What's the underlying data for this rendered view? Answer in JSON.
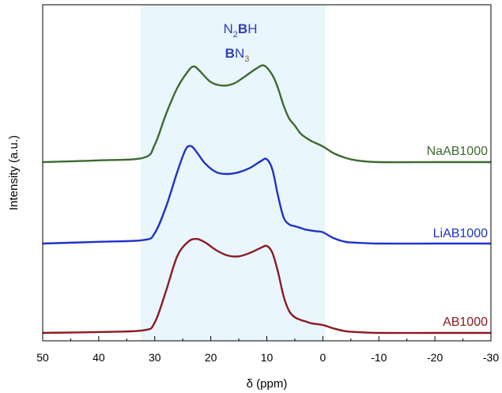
{
  "chart_data": {
    "type": "line",
    "xlabel": "δ (ppm)",
    "ylabel": "Intensity (a.u.)",
    "xlim": [
      50,
      -30
    ],
    "xticks": [
      50,
      40,
      30,
      20,
      10,
      0,
      -10,
      -20,
      -30
    ],
    "xtick_labels": [
      "50",
      "40",
      "30",
      "20",
      "10",
      "0",
      "-10",
      "-20",
      "-30"
    ],
    "highlight_region": {
      "x_from": 32.5,
      "x_to": -0.5,
      "color": "#eaf6fd"
    },
    "annotations": [
      {
        "text_main": "N",
        "sub": "2",
        "bold": "B",
        "tail": "H"
      },
      {
        "bold": "B",
        "text_main": "N",
        "sub": "3"
      }
    ],
    "series": [
      {
        "name": "NaAB1000",
        "color": "#3d6b2f",
        "baseline": 2.0,
        "x": [
          50,
          40,
          32,
          30,
          28,
          26,
          24,
          23,
          22,
          20,
          18,
          16,
          14,
          12,
          10.5,
          9,
          8,
          7,
          6,
          5,
          4,
          3,
          2,
          0,
          -2,
          -4,
          -6,
          -10,
          -20,
          -30
        ],
        "y": [
          2.0,
          2.02,
          2.05,
          2.2,
          2.55,
          2.85,
          3.05,
          3.1,
          3.05,
          2.92,
          2.88,
          2.9,
          2.98,
          3.07,
          3.11,
          3.0,
          2.85,
          2.65,
          2.5,
          2.42,
          2.33,
          2.28,
          2.24,
          2.18,
          2.1,
          2.05,
          2.02,
          2.0,
          2.0,
          2.0
        ]
      },
      {
        "name": "LiAB1000",
        "color": "#1f33c4",
        "baseline": 1.0,
        "x": [
          50,
          40,
          32,
          30,
          28,
          26,
          24.5,
          23.5,
          22.5,
          21,
          19,
          17,
          15,
          13,
          11,
          10,
          9,
          8,
          7,
          6,
          5,
          4,
          3,
          1,
          0,
          -2,
          -4,
          -6,
          -10,
          -20,
          -30
        ],
        "y": [
          1.0,
          1.02,
          1.04,
          1.12,
          1.42,
          1.82,
          2.08,
          2.12,
          2.05,
          1.92,
          1.82,
          1.8,
          1.82,
          1.87,
          1.95,
          1.97,
          1.85,
          1.55,
          1.3,
          1.22,
          1.2,
          1.18,
          1.16,
          1.14,
          1.13,
          1.06,
          1.02,
          1.01,
          1.0,
          1.0,
          1.0
        ]
      },
      {
        "name": "AB1000",
        "color": "#8b1a22",
        "baseline": 0.0,
        "x": [
          50,
          40,
          32,
          30,
          28,
          26,
          24,
          22.5,
          21,
          19,
          17,
          15,
          13,
          11,
          10,
          9,
          8,
          7,
          6,
          5,
          4,
          3,
          2,
          0,
          -2,
          -4,
          -6,
          -10,
          -20,
          -30
        ],
        "y": [
          0.0,
          0.01,
          0.03,
          0.12,
          0.48,
          0.88,
          1.05,
          1.08,
          1.04,
          0.95,
          0.89,
          0.88,
          0.92,
          0.98,
          1.0,
          0.92,
          0.7,
          0.42,
          0.25,
          0.18,
          0.15,
          0.13,
          0.11,
          0.09,
          0.05,
          0.02,
          0.01,
          0.0,
          0.0,
          0.0
        ]
      }
    ]
  }
}
